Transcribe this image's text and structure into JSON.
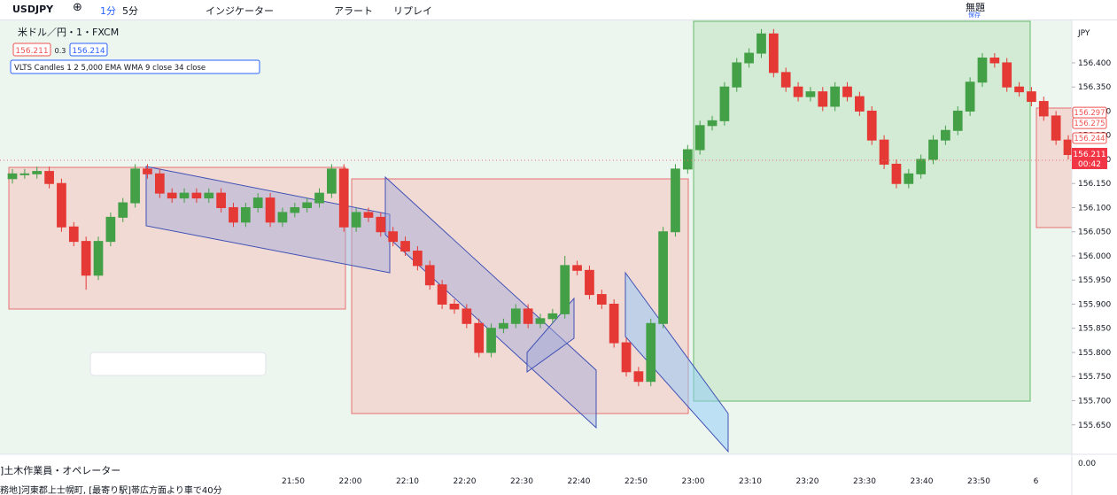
{
  "toolbar": {
    "symbol": "USDJPY",
    "intervals": [
      "1分",
      "5分"
    ],
    "indicators": "インジケーター",
    "alert": "アラート",
    "replay": "リプレイ",
    "layout_name": "無題",
    "save": "保存"
  },
  "legend": {
    "title": "米ドル／円・1・FXCM",
    "bid": 156.211,
    "spread": 0.3,
    "ask": 156.214,
    "indicator": "VLTS Candles 1 2 5,000 EMA WMA 9 close 34 close"
  },
  "price_axis": {
    "currency": "JPY",
    "ylim": [
      155.589,
      156.488
    ],
    "yticks": [
      {
        "value": 156.4,
        "label": "156.400"
      },
      {
        "value": 156.35,
        "label": "156.350"
      },
      {
        "value": 156.3,
        "label": "156.300"
      },
      {
        "value": 156.25,
        "label": "156.250"
      },
      {
        "value": 156.2,
        "label": "156.200"
      },
      {
        "value": 156.15,
        "label": "156.150"
      },
      {
        "value": 156.1,
        "label": "156.100"
      },
      {
        "value": 156.05,
        "label": "156.050"
      },
      {
        "value": 156,
        "label": "156.000"
      },
      {
        "value": 155.95,
        "label": "155.950"
      },
      {
        "value": 155.9,
        "label": "155.900"
      },
      {
        "value": 155.85,
        "label": "155.850"
      },
      {
        "value": 155.8,
        "label": "155.800"
      },
      {
        "value": 155.75,
        "label": "155.750"
      },
      {
        "value": 155.7,
        "label": "155.700"
      },
      {
        "value": 155.65,
        "label": "155.650"
      }
    ],
    "price_labels": [
      156.297,
      156.275,
      156.244
    ],
    "last_price": 156.211,
    "countdown": "00:42",
    "lower_pane": "0.00"
  },
  "time_axis": {
    "ticks": [
      "21:50",
      "22:00",
      "22:10",
      "22:20",
      "22:30",
      "22:40",
      "22:50",
      "23:00",
      "23:10",
      "23:20",
      "23:30",
      "23:40",
      "23:50",
      "6"
    ]
  },
  "candles": [
    [
      156.16,
      156.18,
      156.15,
      156.17
    ],
    [
      156.17,
      156.18,
      156.16,
      156.17
    ],
    [
      156.17,
      156.185,
      156.16,
      156.175
    ],
    [
      156.175,
      156.185,
      156.14,
      156.15
    ],
    [
      156.15,
      156.16,
      156.05,
      156.06
    ],
    [
      156.06,
      156.07,
      156.02,
      156.03
    ],
    [
      156.03,
      156.04,
      155.93,
      155.96
    ],
    [
      155.96,
      156.04,
      155.95,
      156.03
    ],
    [
      156.03,
      156.09,
      156.02,
      156.08
    ],
    [
      156.08,
      156.12,
      156.07,
      156.11
    ],
    [
      156.11,
      156.19,
      156.1,
      156.18
    ],
    [
      156.18,
      156.19,
      156.16,
      156.17
    ],
    [
      156.17,
      156.18,
      156.12,
      156.13
    ],
    [
      156.13,
      156.14,
      156.11,
      156.12
    ],
    [
      156.12,
      156.14,
      156.11,
      156.13
    ],
    [
      156.13,
      156.14,
      156.11,
      156.12
    ],
    [
      156.12,
      156.14,
      156.11,
      156.13
    ],
    [
      156.13,
      156.14,
      156.09,
      156.1
    ],
    [
      156.1,
      156.11,
      156.06,
      156.07
    ],
    [
      156.07,
      156.11,
      156.06,
      156.1
    ],
    [
      156.1,
      156.13,
      156.09,
      156.12
    ],
    [
      156.12,
      156.13,
      156.06,
      156.07
    ],
    [
      156.07,
      156.1,
      156.06,
      156.09
    ],
    [
      156.09,
      156.11,
      156.08,
      156.1
    ],
    [
      156.1,
      156.12,
      156.09,
      156.11
    ],
    [
      156.11,
      156.14,
      156.1,
      156.13
    ],
    [
      156.13,
      156.19,
      156.12,
      156.18
    ],
    [
      156.18,
      156.19,
      156.05,
      156.06
    ],
    [
      156.06,
      156.1,
      156.05,
      156.09
    ],
    [
      156.09,
      156.1,
      156.07,
      156.08
    ],
    [
      156.08,
      156.09,
      156.04,
      156.05
    ],
    [
      156.05,
      156.06,
      156.02,
      156.03
    ],
    [
      156.03,
      156.04,
      156,
      156.01
    ],
    [
      156.01,
      156.02,
      155.97,
      155.98
    ],
    [
      155.98,
      155.99,
      155.93,
      155.94
    ],
    [
      155.94,
      155.95,
      155.89,
      155.9
    ],
    [
      155.9,
      155.91,
      155.88,
      155.89
    ],
    [
      155.89,
      155.9,
      155.85,
      155.86
    ],
    [
      155.86,
      155.87,
      155.79,
      155.8
    ],
    [
      155.8,
      155.86,
      155.79,
      155.85
    ],
    [
      155.85,
      155.87,
      155.84,
      155.86
    ],
    [
      155.86,
      155.9,
      155.85,
      155.89
    ],
    [
      155.89,
      155.9,
      155.85,
      155.86
    ],
    [
      155.86,
      155.88,
      155.85,
      155.87
    ],
    [
      155.87,
      155.89,
      155.86,
      155.88
    ],
    [
      155.88,
      156,
      155.87,
      155.98
    ],
    [
      155.98,
      155.99,
      155.96,
      155.97
    ],
    [
      155.97,
      155.98,
      155.91,
      155.92
    ],
    [
      155.92,
      155.93,
      155.89,
      155.9
    ],
    [
      155.9,
      155.91,
      155.81,
      155.82
    ],
    [
      155.82,
      155.83,
      155.75,
      155.76
    ],
    [
      155.76,
      155.77,
      155.73,
      155.74
    ],
    [
      155.74,
      155.87,
      155.73,
      155.86
    ],
    [
      155.86,
      156.06,
      155.85,
      156.05
    ],
    [
      156.05,
      156.19,
      156.04,
      156.18
    ],
    [
      156.18,
      156.23,
      156.17,
      156.22
    ],
    [
      156.22,
      156.28,
      156.21,
      156.27
    ],
    [
      156.27,
      156.29,
      156.26,
      156.28
    ],
    [
      156.28,
      156.36,
      156.27,
      156.35
    ],
    [
      156.35,
      156.41,
      156.34,
      156.4
    ],
    [
      156.4,
      156.43,
      156.39,
      156.42
    ],
    [
      156.42,
      156.47,
      156.41,
      156.46
    ],
    [
      156.46,
      156.47,
      156.37,
      156.38
    ],
    [
      156.38,
      156.39,
      156.34,
      156.35
    ],
    [
      156.35,
      156.36,
      156.32,
      156.33
    ],
    [
      156.33,
      156.35,
      156.32,
      156.34
    ],
    [
      156.34,
      156.35,
      156.3,
      156.31
    ],
    [
      156.31,
      156.36,
      156.3,
      156.35
    ],
    [
      156.35,
      156.36,
      156.32,
      156.33
    ],
    [
      156.33,
      156.34,
      156.29,
      156.3
    ],
    [
      156.3,
      156.31,
      156.23,
      156.24
    ],
    [
      156.24,
      156.25,
      156.18,
      156.19
    ],
    [
      156.19,
      156.2,
      156.14,
      156.15
    ],
    [
      156.15,
      156.18,
      156.14,
      156.17
    ],
    [
      156.17,
      156.21,
      156.16,
      156.2
    ],
    [
      156.2,
      156.25,
      156.19,
      156.24
    ],
    [
      156.24,
      156.27,
      156.23,
      156.26
    ],
    [
      156.26,
      156.31,
      156.25,
      156.3
    ],
    [
      156.3,
      156.37,
      156.29,
      156.36
    ],
    [
      156.36,
      156.42,
      156.35,
      156.41
    ],
    [
      156.41,
      156.42,
      156.39,
      156.4
    ],
    [
      156.4,
      156.41,
      156.34,
      156.35
    ],
    [
      156.35,
      156.36,
      156.33,
      156.34
    ],
    [
      156.34,
      156.35,
      156.31,
      156.32
    ],
    [
      156.32,
      156.33,
      156.28,
      156.29
    ],
    [
      156.29,
      156.3,
      156.23,
      156.24
    ],
    [
      156.24,
      156.25,
      156.2,
      156.21
    ]
  ],
  "ad": {
    "title": "]土木作業員・オペレーター",
    "line": "務地]河東郡上士幌町, [最寄り駅]帯広方面より車で40分"
  }
}
